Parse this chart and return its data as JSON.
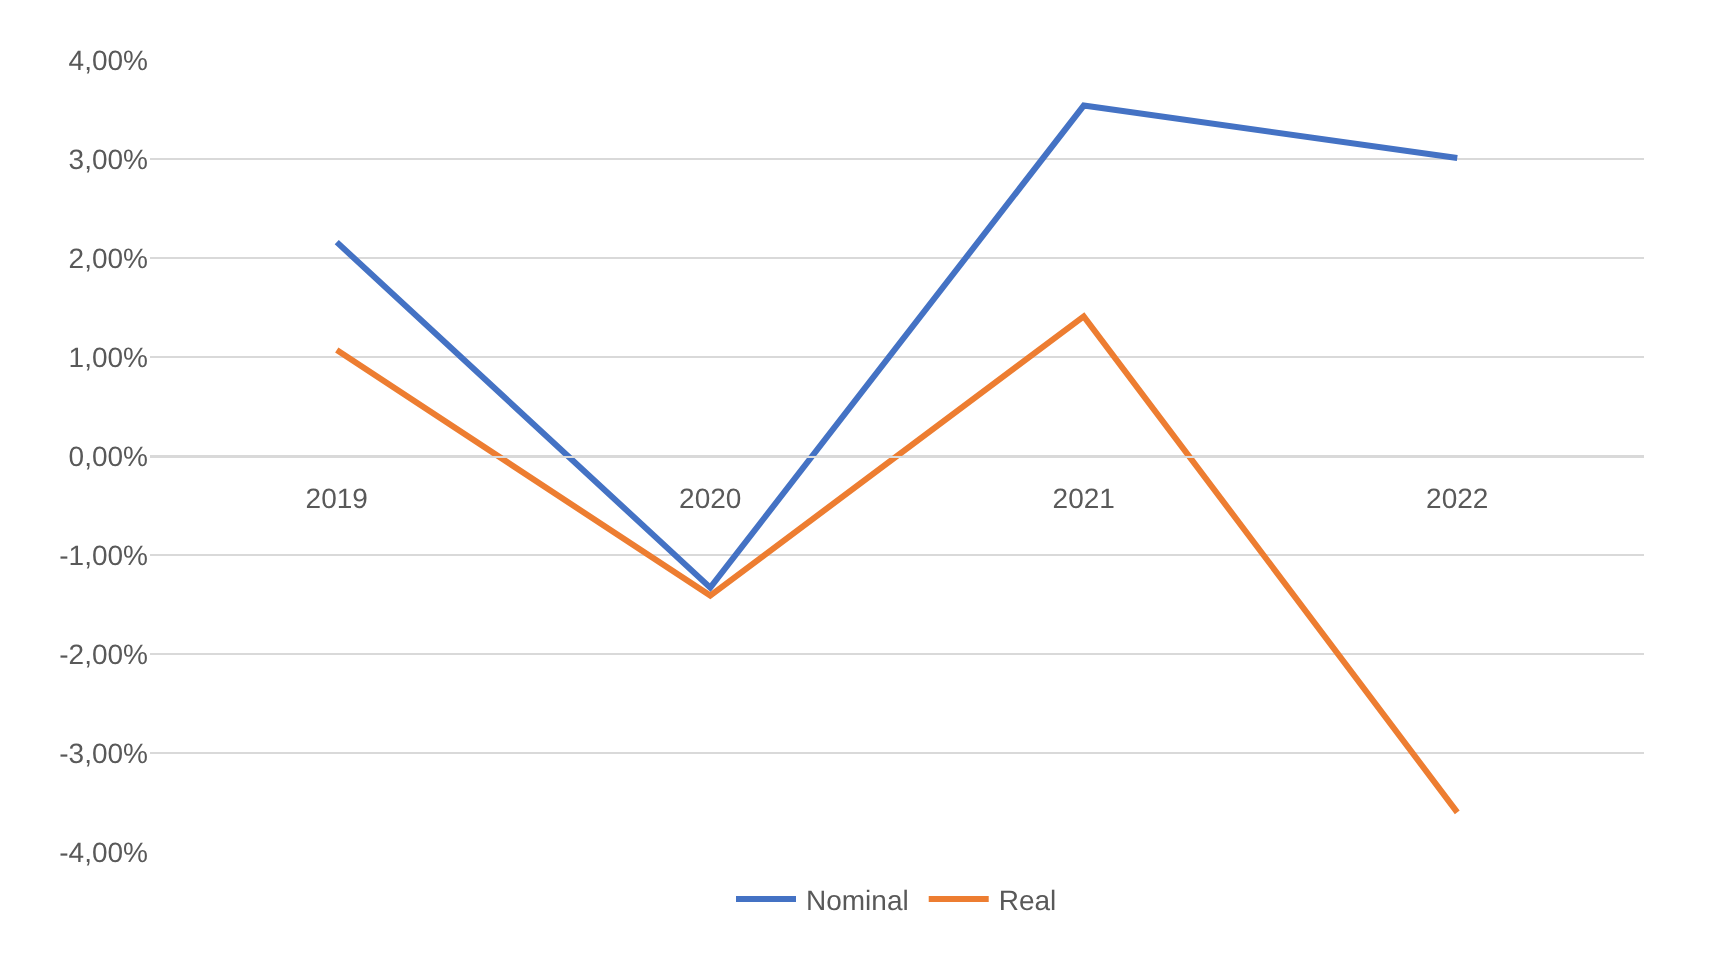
{
  "chart_data": {
    "type": "line",
    "categories": [
      "2019",
      "2020",
      "2021",
      "2022"
    ],
    "series": [
      {
        "name": "Nominal",
        "color": "#4472c4",
        "values": [
          2.16,
          -1.33,
          3.54,
          3.01
        ]
      },
      {
        "name": "Real",
        "color": "#ed7d31",
        "values": [
          1.07,
          -1.41,
          1.41,
          -3.6
        ]
      }
    ],
    "ylim": [
      -4,
      4
    ],
    "yticks": [
      {
        "value": -4,
        "label": "-4,00%"
      },
      {
        "value": -3,
        "label": "-3,00%"
      },
      {
        "value": -2,
        "label": "-2,00%"
      },
      {
        "value": -1,
        "label": "-1,00%"
      },
      {
        "value": 0,
        "label": "0,00%"
      },
      {
        "value": 1,
        "label": "1,00%"
      },
      {
        "value": 2,
        "label": "2,00%"
      },
      {
        "value": 3,
        "label": "3,00%"
      },
      {
        "value": 4,
        "label": "4,00%"
      }
    ],
    "grid": "y",
    "legend": "bottom",
    "marker": "none",
    "line_style": "solid"
  }
}
